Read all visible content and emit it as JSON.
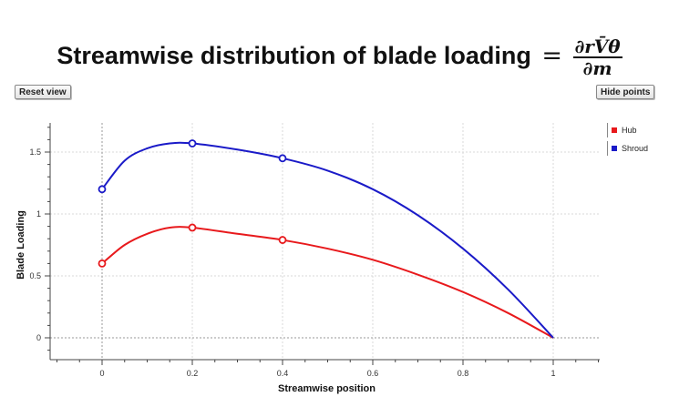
{
  "title": {
    "text": "Streamwise distribution of blade loading",
    "equals": "=",
    "numerator": "∂rV̄θ",
    "denominator": "∂m"
  },
  "buttons": {
    "reset_label": "Reset view",
    "hide_label": "Hide points"
  },
  "colors": {
    "hub": "#e8191c",
    "shroud": "#1a1ac8"
  },
  "chart_data": {
    "type": "line",
    "xlabel": "Streamwise position",
    "ylabel": "Blade Loading",
    "xlim": [
      -0.1,
      1.1
    ],
    "ylim": [
      -0.15,
      1.72
    ],
    "x_ticks": [
      0,
      0.2,
      0.4,
      0.6,
      0.8,
      1
    ],
    "x_tick_labels": [
      "0",
      "0.2",
      "0.4",
      "0.6",
      "0.8",
      "1"
    ],
    "y_ticks": [
      0,
      0.5,
      1,
      1.5
    ],
    "y_tick_labels": [
      "0",
      "0.5",
      "1",
      "1.5"
    ],
    "grid": true,
    "legend_position": "top-right",
    "series": [
      {
        "name": "Hub",
        "color": "#e8191c",
        "points": [
          [
            0,
            0.6
          ],
          [
            0.2,
            0.89
          ],
          [
            0.4,
            0.79
          ]
        ],
        "curve": [
          [
            0,
            0.6
          ],
          [
            0.05,
            0.75
          ],
          [
            0.1,
            0.84
          ],
          [
            0.15,
            0.89
          ],
          [
            0.2,
            0.89
          ],
          [
            0.3,
            0.84
          ],
          [
            0.4,
            0.79
          ],
          [
            0.5,
            0.72
          ],
          [
            0.6,
            0.63
          ],
          [
            0.7,
            0.51
          ],
          [
            0.8,
            0.37
          ],
          [
            0.9,
            0.2
          ],
          [
            1.0,
            0.0
          ]
        ]
      },
      {
        "name": "Shroud",
        "color": "#1a1ac8",
        "points": [
          [
            0,
            1.2
          ],
          [
            0.2,
            1.57
          ],
          [
            0.4,
            1.45
          ]
        ],
        "curve": [
          [
            0,
            1.2
          ],
          [
            0.05,
            1.43
          ],
          [
            0.1,
            1.53
          ],
          [
            0.15,
            1.57
          ],
          [
            0.2,
            1.57
          ],
          [
            0.3,
            1.52
          ],
          [
            0.4,
            1.45
          ],
          [
            0.5,
            1.35
          ],
          [
            0.6,
            1.2
          ],
          [
            0.7,
            0.99
          ],
          [
            0.8,
            0.72
          ],
          [
            0.9,
            0.39
          ],
          [
            1.0,
            0.0
          ]
        ]
      }
    ]
  }
}
